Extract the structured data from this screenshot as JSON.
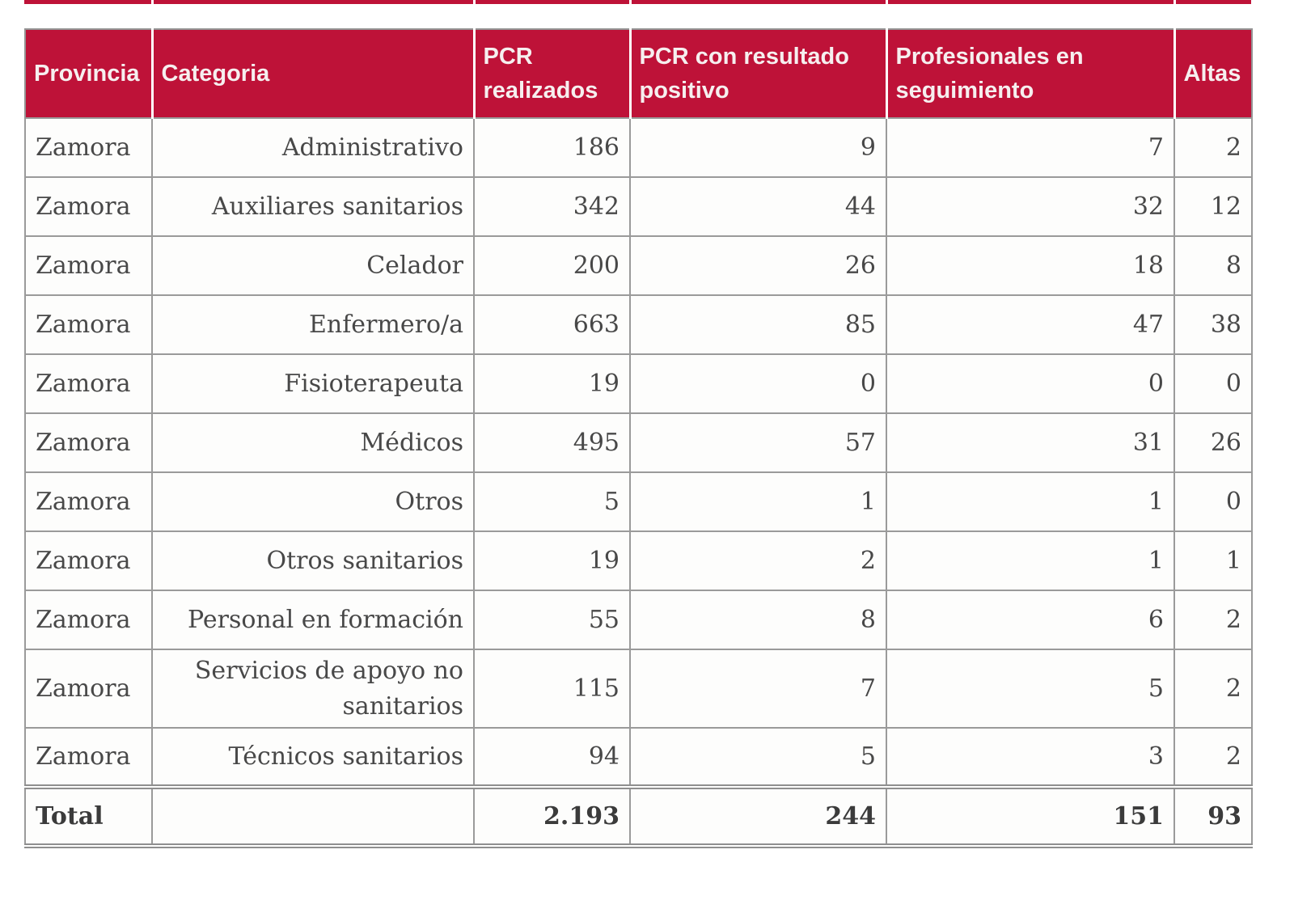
{
  "colors": {
    "header_bg": "#be1238",
    "header_text": "#f6efef",
    "body_text": "#484848",
    "border": "#9a9a9a",
    "row_bg": "#fdfdfc"
  },
  "chart_data": {
    "type": "table",
    "title": "",
    "columns": [
      {
        "key": "provincia",
        "label": "Provincia"
      },
      {
        "key": "categoria",
        "label": "Categoria"
      },
      {
        "key": "pcr-realizados",
        "label": "PCR realizados"
      },
      {
        "key": "pcr-positivo",
        "label": "PCR con resultado positivo"
      },
      {
        "key": "seguimiento",
        "label": "Profesionales en seguimiento"
      },
      {
        "key": "altas",
        "label": "Altas"
      }
    ],
    "rows": [
      [
        "Zamora",
        "Administrativo",
        "186",
        "9",
        "7",
        "2"
      ],
      [
        "Zamora",
        "Auxiliares sanitarios",
        "342",
        "44",
        "32",
        "12"
      ],
      [
        "Zamora",
        "Celador",
        "200",
        "26",
        "18",
        "8"
      ],
      [
        "Zamora",
        "Enfermero/a",
        "663",
        "85",
        "47",
        "38"
      ],
      [
        "Zamora",
        "Fisioterapeuta",
        "19",
        "0",
        "0",
        "0"
      ],
      [
        "Zamora",
        "Médicos",
        "495",
        "57",
        "31",
        "26"
      ],
      [
        "Zamora",
        "Otros",
        "5",
        "1",
        "1",
        "0"
      ],
      [
        "Zamora",
        "Otros sanitarios",
        "19",
        "2",
        "1",
        "1"
      ],
      [
        "Zamora",
        "Personal en formación",
        "55",
        "8",
        "6",
        "2"
      ],
      [
        "Zamora",
        "Servicios de apoyo no sanitarios",
        "115",
        "7",
        "5",
        "2"
      ],
      [
        "Zamora",
        "Técnicos sanitarios",
        "94",
        "5",
        "3",
        "2"
      ]
    ],
    "total_row": [
      "Total",
      "",
      "2.193",
      "244",
      "151",
      "93"
    ]
  }
}
